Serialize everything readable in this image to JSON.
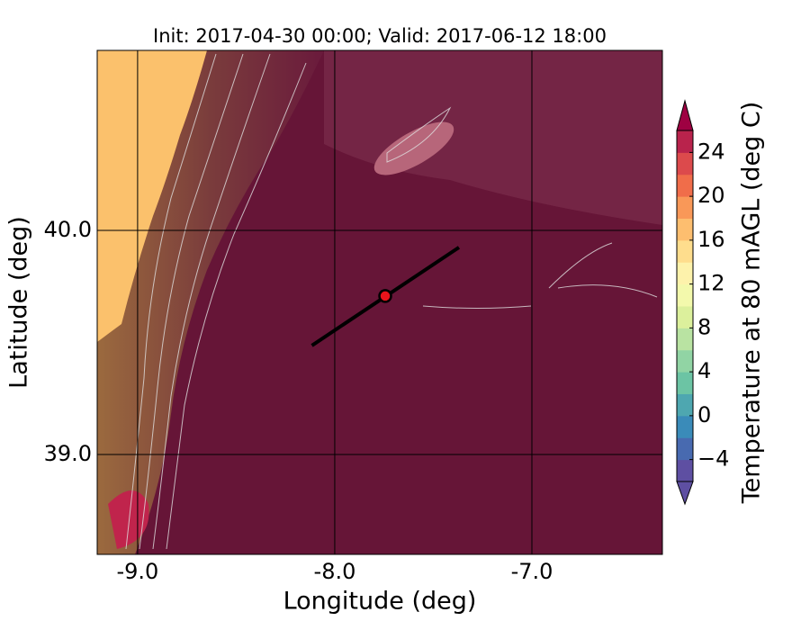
{
  "chart_data": {
    "type": "map",
    "title": "Init: 2017-04-30 00:00; Valid: 2017-06-12 18:00",
    "x_label": "Longitude (deg)",
    "y_label": "Latitude (deg)",
    "xlim": [
      -9.205,
      -6.338
    ],
    "ylim": [
      38.554,
      40.803
    ],
    "xticks": [
      {
        "value": -9,
        "label": "-9.0"
      },
      {
        "value": -8,
        "label": "-8.0"
      },
      {
        "value": -7,
        "label": "-7.0"
      }
    ],
    "yticks": [
      {
        "value": 39,
        "label": "39.0"
      },
      {
        "value": 40,
        "label": "40.0"
      }
    ],
    "grid": true,
    "marker": {
      "lon": -7.744,
      "lat": 39.707,
      "color": "#e8141b"
    },
    "transect": {
      "lon": [
        -8.116,
        -7.37
      ],
      "lat": [
        39.486,
        39.924
      ],
      "color": "#000000"
    },
    "colorbar": {
      "label": "Temperature at 80 mAGL (deg C)",
      "clim": [
        -6,
        26
      ],
      "ticks": [
        {
          "value": -4,
          "label": "−4"
        },
        0,
        4,
        8,
        12,
        16,
        20,
        24
      ],
      "colors": [
        "#5e4fa2",
        "#486ab0",
        "#3a8bb9",
        "#4ea7b0",
        "#6cc4a4",
        "#91d4a4",
        "#b9e3a2",
        "#dcf09c",
        "#f3f9ac",
        "#fdf2ab",
        "#fedd8d",
        "#fdbe6f",
        "#f99858",
        "#f06d4a",
        "#dc4a4c",
        "#b9234c"
      ],
      "extend_colors": [
        "#5e4fa2",
        "#9e0142"
      ]
    }
  }
}
